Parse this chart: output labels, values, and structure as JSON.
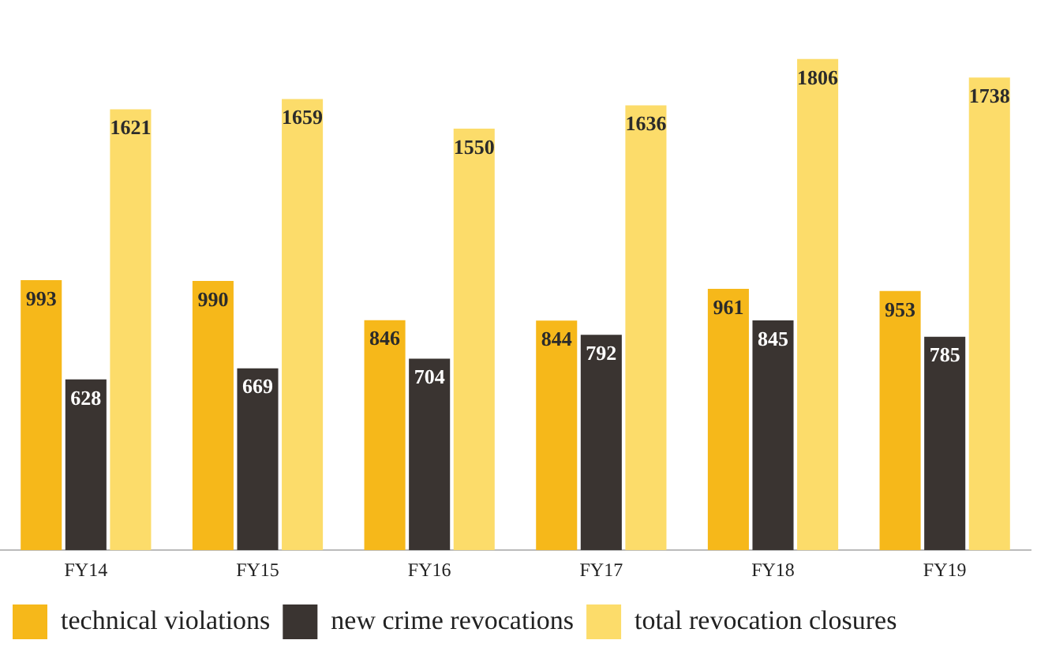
{
  "chart_data": {
    "type": "bar",
    "categories": [
      "FY14",
      "FY15",
      "FY16",
      "FY17",
      "FY18",
      "FY19"
    ],
    "series": [
      {
        "name": "technical violations",
        "color": "#f6b81a",
        "values": [
          993,
          990,
          846,
          844,
          961,
          953
        ]
      },
      {
        "name": "new crime revocations",
        "color": "#3a3431",
        "values": [
          628,
          669,
          704,
          792,
          845,
          785
        ]
      },
      {
        "name": "total revocation closures",
        "color": "#fcdc6a",
        "values": [
          1621,
          1659,
          1550,
          1636,
          1806,
          1738
        ]
      }
    ],
    "data_labels": true,
    "grid": false,
    "legend": "bottom"
  }
}
